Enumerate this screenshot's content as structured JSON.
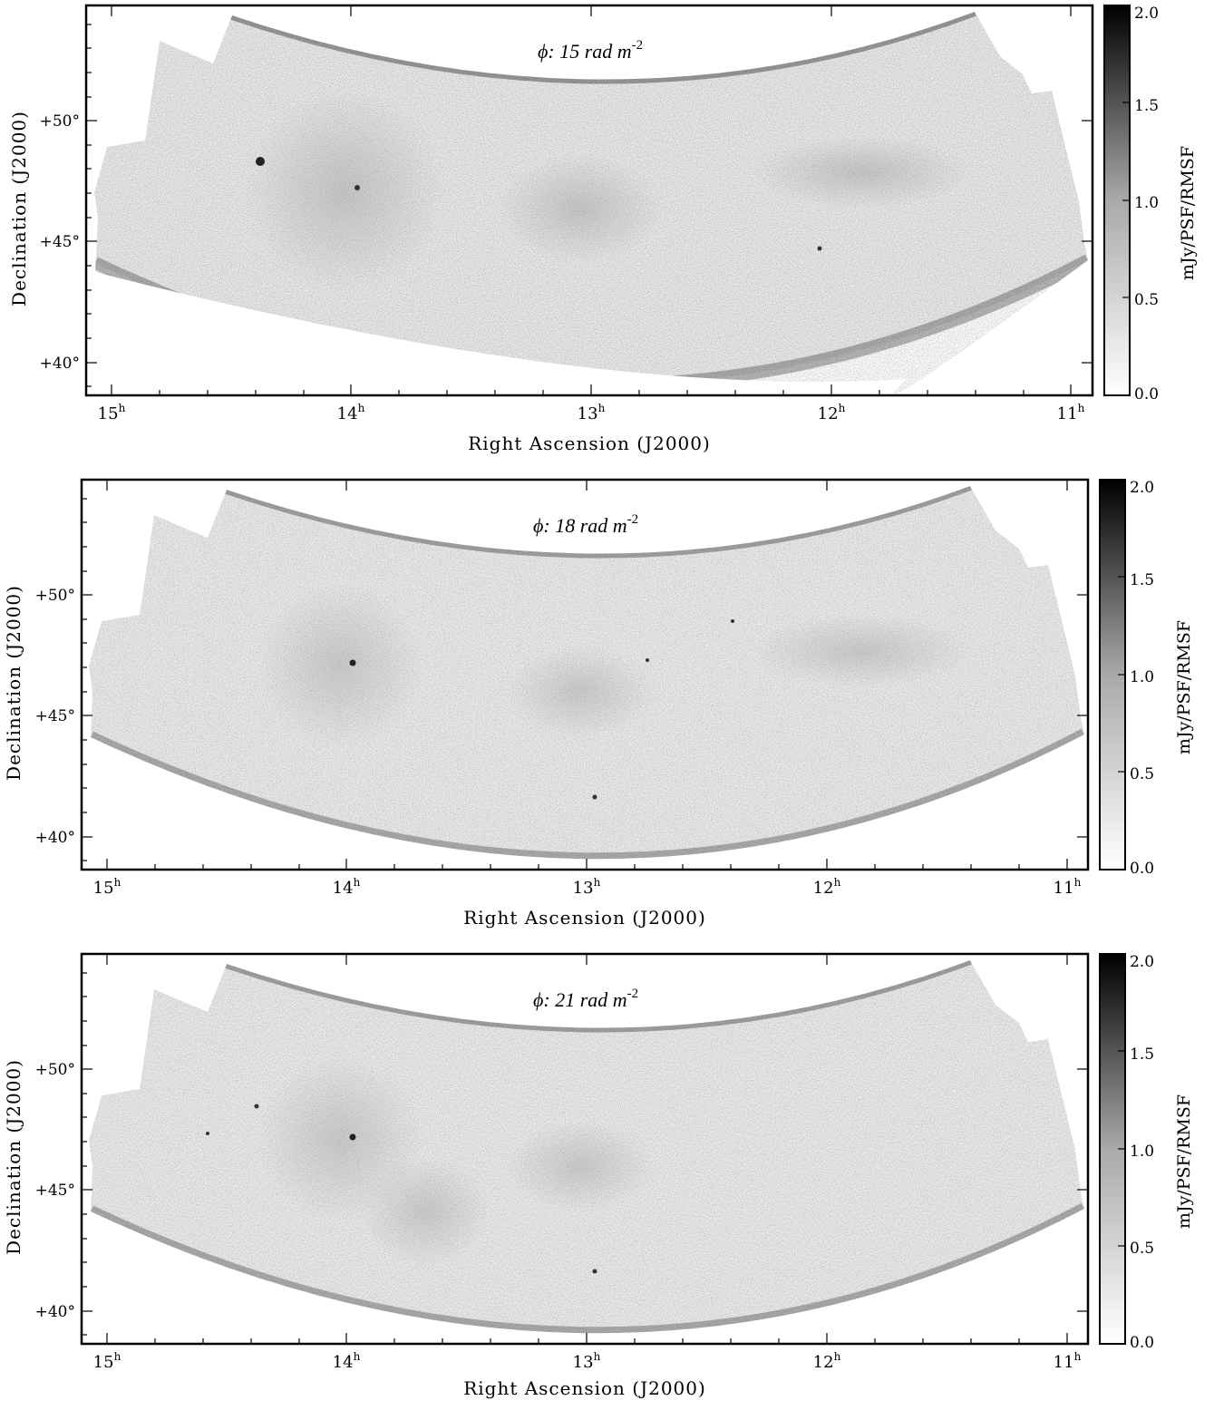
{
  "panels": [
    {
      "title": "ϕ: 15 rad m",
      "title_sup": "-2",
      "xlabel": "Right Ascension (J2000)",
      "ylabel": "Declination (J2000)",
      "xticks": [
        "15",
        "14",
        "13",
        "12",
        "11"
      ],
      "xtick_sup": "h",
      "yticks": [
        "+50°",
        "+45°",
        "+40°"
      ],
      "colorbar": {
        "label": "mJy/PSF/RMSF",
        "ticks": [
          "2.0",
          "1.5",
          "1.0",
          "0.5",
          "0.0"
        ],
        "range": [
          0.0,
          2.0
        ]
      }
    },
    {
      "title": "ϕ: 18 rad m",
      "title_sup": "-2",
      "xlabel": "Right Ascension (J2000)",
      "ylabel": "Declination (J2000)",
      "xticks": [
        "15",
        "14",
        "13",
        "12",
        "11"
      ],
      "xtick_sup": "h",
      "yticks": [
        "+50°",
        "+45°",
        "+40°"
      ],
      "colorbar": {
        "label": "mJy/PSF/RMSF",
        "ticks": [
          "2.0",
          "1.5",
          "1.0",
          "0.5",
          "0.0"
        ],
        "range": [
          0.0,
          2.0
        ]
      }
    },
    {
      "title": "ϕ: 21 rad m",
      "title_sup": "-2",
      "xlabel": "Right Ascension (J2000)",
      "ylabel": "Declination (J2000)",
      "xticks": [
        "15",
        "14",
        "13",
        "12",
        "11"
      ],
      "xtick_sup": "h",
      "yticks": [
        "+50°",
        "+45°",
        "+40°"
      ],
      "colorbar": {
        "label": "mJy/PSF/RMSF",
        "ticks": [
          "2.0",
          "1.5",
          "1.0",
          "0.5",
          "0.0"
        ],
        "range": [
          0.0,
          2.0
        ]
      }
    }
  ],
  "colormap": {
    "low": "#ffffff",
    "high": "#000000"
  }
}
